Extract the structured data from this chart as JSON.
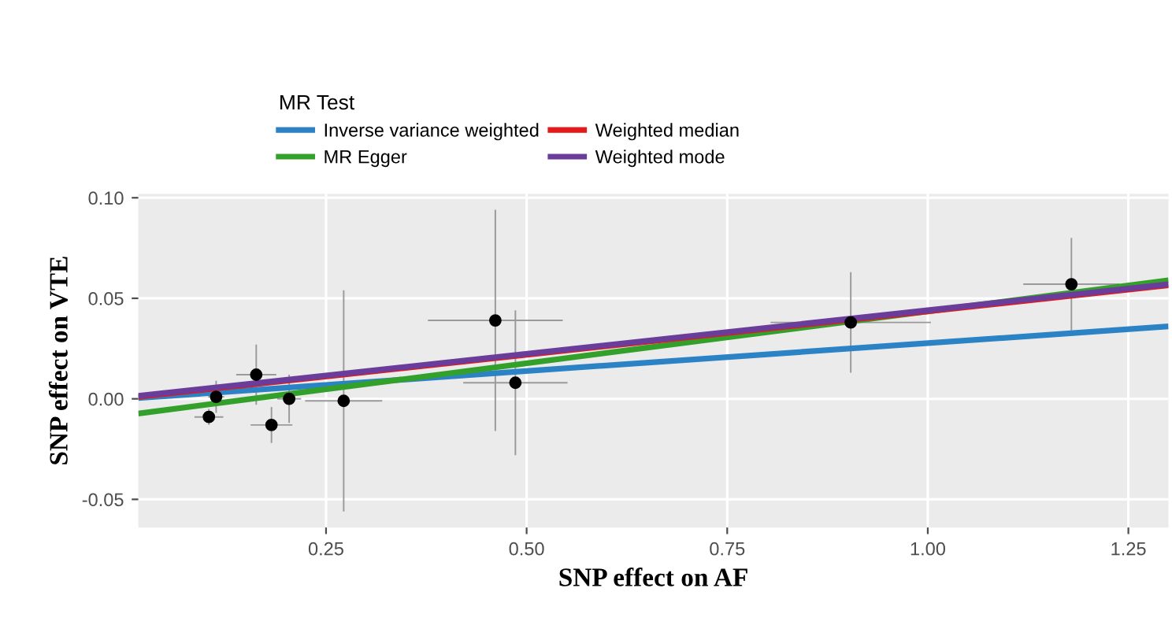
{
  "chart_data": {
    "type": "scatter",
    "xlabel": "SNP effect on AF",
    "ylabel": "SNP effect on VTE",
    "legend_title": "MR Test",
    "xlim": [
      0.016,
      1.3
    ],
    "ylim": [
      -0.064,
      0.102
    ],
    "xticks": [
      {
        "value": 0.25,
        "label": "0.25"
      },
      {
        "value": 0.5,
        "label": "0.50"
      },
      {
        "value": 0.75,
        "label": "0.75"
      },
      {
        "value": 1.0,
        "label": "1.00"
      },
      {
        "value": 1.25,
        "label": "1.25"
      }
    ],
    "yticks": [
      {
        "value": -0.05,
        "label": "-0.05"
      },
      {
        "value": 0.0,
        "label": "0.00"
      },
      {
        "value": 0.05,
        "label": "0.05"
      },
      {
        "value": 0.1,
        "label": "0.10"
      }
    ],
    "grid": true,
    "legend": "top",
    "series": [
      {
        "marker": "circle",
        "color": "#000000",
        "x": [
          0.104,
          0.113,
          0.163,
          0.182,
          0.204,
          0.272,
          0.461,
          0.486,
          0.904,
          1.179
        ],
        "values": [
          -0.009,
          0.001,
          0.012,
          -0.013,
          0.0,
          -0.001,
          0.039,
          0.008,
          0.038,
          0.057
        ],
        "errors": [
          0.004,
          0.008,
          0.015,
          0.009,
          0.012,
          0.055,
          0.055,
          0.036,
          0.025,
          0.023
        ],
        "xerrors": [
          0.018,
          0.01,
          0.025,
          0.026,
          0.015,
          0.048,
          0.084,
          0.065,
          0.1,
          0.06
        ]
      },
      {
        "type": "line",
        "name": "Inverse variance weighted",
        "color": "#2b83c6",
        "x": [
          0.016,
          1.3
        ],
        "values": [
          0.0004,
          0.036
        ]
      },
      {
        "type": "line",
        "name": "MR Egger",
        "color": "#33a02c",
        "x": [
          0.016,
          1.3
        ],
        "values": [
          -0.0073,
          0.059
        ]
      },
      {
        "type": "line",
        "name": "Weighted median",
        "color": "#e31a1c",
        "x": [
          0.016,
          1.3
        ],
        "values": [
          0.001,
          0.0565
        ]
      },
      {
        "type": "line",
        "name": "Weighted mode",
        "color": "#6a3d9a",
        "x": [
          0.016,
          1.3
        ],
        "values": [
          0.0015,
          0.057
        ]
      }
    ]
  }
}
